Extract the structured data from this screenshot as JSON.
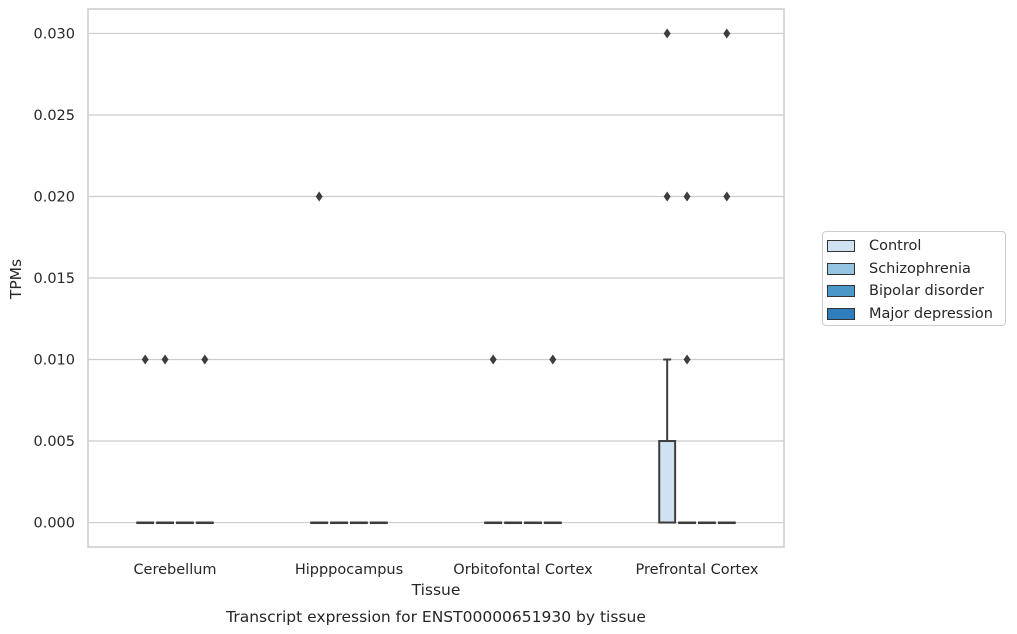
{
  "chart_data": {
    "type": "box",
    "title": "Transcript expression for ENST00000651930 by tissue",
    "xlabel": "Tissue",
    "ylabel": "TPMs",
    "ylim": [
      -0.0015,
      0.0315
    ],
    "yticks": [
      "0.000",
      "0.005",
      "0.010",
      "0.015",
      "0.020",
      "0.025",
      "0.030"
    ],
    "categories": [
      "Cerebellum",
      "Hipppocampus",
      "Orbitofontal Cortex",
      "Prefrontal Cortex"
    ],
    "grid": "horizontal",
    "legend_position": "right",
    "series": [
      {
        "name": "Control",
        "color": "#d0e1f2",
        "boxes": [
          {
            "q1": 0,
            "median": 0,
            "q3": 0,
            "whisker_low": 0,
            "whisker_high": 0,
            "outliers": [
              0.01
            ]
          },
          {
            "q1": 0,
            "median": 0,
            "q3": 0,
            "whisker_low": 0,
            "whisker_high": 0,
            "outliers": [
              0.02
            ]
          },
          {
            "q1": 0,
            "median": 0,
            "q3": 0,
            "whisker_low": 0,
            "whisker_high": 0,
            "outliers": [
              0.01
            ]
          },
          {
            "q1": 0,
            "median": 0,
            "q3": 0.005,
            "whisker_low": 0,
            "whisker_high": 0.01,
            "outliers": [
              0.02,
              0.03
            ]
          }
        ]
      },
      {
        "name": "Schizophrenia",
        "color": "#94c4df",
        "boxes": [
          {
            "q1": 0,
            "median": 0,
            "q3": 0,
            "whisker_low": 0,
            "whisker_high": 0,
            "outliers": [
              0.01
            ]
          },
          {
            "q1": 0,
            "median": 0,
            "q3": 0,
            "whisker_low": 0,
            "whisker_high": 0,
            "outliers": []
          },
          {
            "q1": 0,
            "median": 0,
            "q3": 0,
            "whisker_low": 0,
            "whisker_high": 0,
            "outliers": []
          },
          {
            "q1": 0,
            "median": 0,
            "q3": 0,
            "whisker_low": 0,
            "whisker_high": 0,
            "outliers": [
              0.01,
              0.02
            ]
          }
        ]
      },
      {
        "name": "Bipolar disorder",
        "color": "#4a98c9",
        "boxes": [
          {
            "q1": 0,
            "median": 0,
            "q3": 0,
            "whisker_low": 0,
            "whisker_high": 0,
            "outliers": []
          },
          {
            "q1": 0,
            "median": 0,
            "q3": 0,
            "whisker_low": 0,
            "whisker_high": 0,
            "outliers": []
          },
          {
            "q1": 0,
            "median": 0,
            "q3": 0,
            "whisker_low": 0,
            "whisker_high": 0,
            "outliers": []
          },
          {
            "q1": 0,
            "median": 0,
            "q3": 0,
            "whisker_low": 0,
            "whisker_high": 0,
            "outliers": []
          }
        ]
      },
      {
        "name": "Major depression",
        "color": "#2e7ebc",
        "boxes": [
          {
            "q1": 0,
            "median": 0,
            "q3": 0,
            "whisker_low": 0,
            "whisker_high": 0,
            "outliers": [
              0.01
            ]
          },
          {
            "q1": 0,
            "median": 0,
            "q3": 0,
            "whisker_low": 0,
            "whisker_high": 0,
            "outliers": []
          },
          {
            "q1": 0,
            "median": 0,
            "q3": 0,
            "whisker_low": 0,
            "whisker_high": 0,
            "outliers": [
              0.01
            ]
          },
          {
            "q1": 0,
            "median": 0,
            "q3": 0,
            "whisker_low": 0,
            "whisker_high": 0,
            "outliers": [
              0.02,
              0.03
            ]
          }
        ]
      }
    ]
  }
}
